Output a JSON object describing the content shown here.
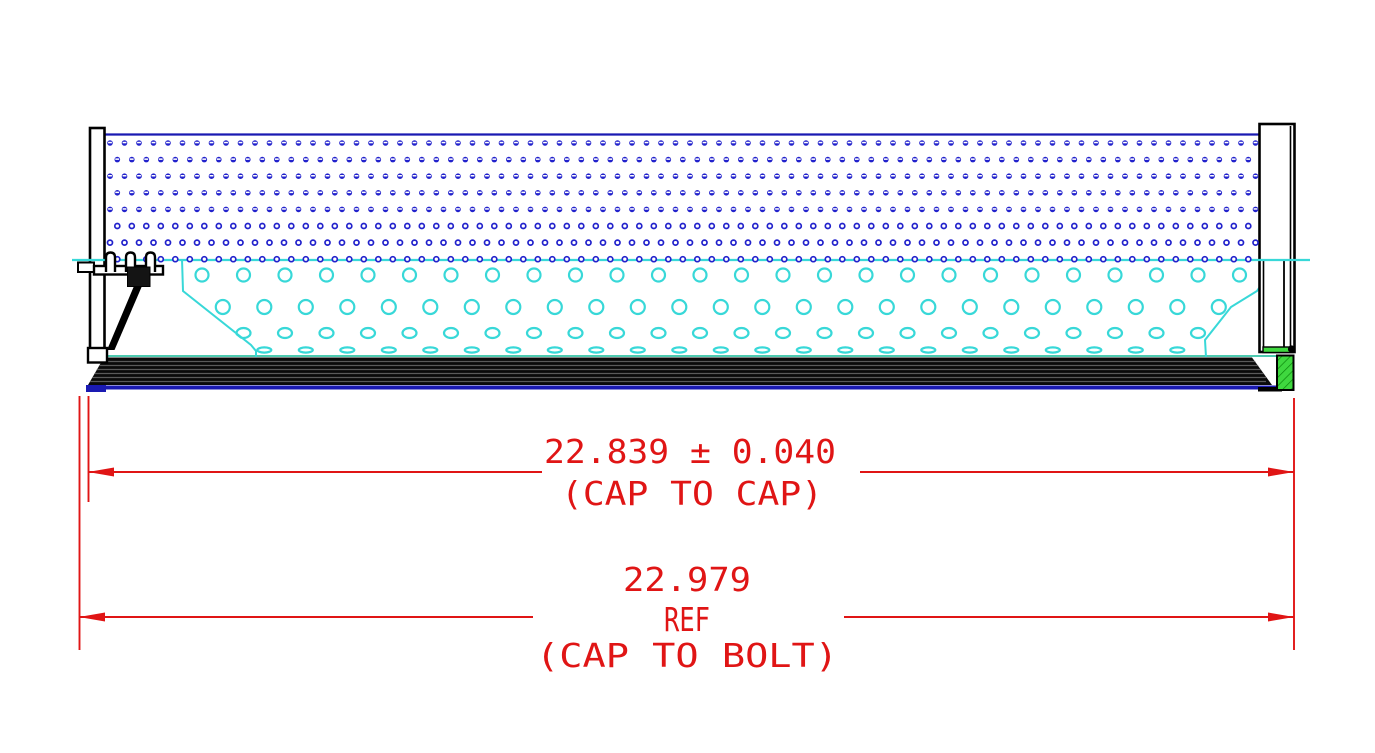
{
  "dimensions": {
    "cap_to_cap": {
      "value": "22.839 ± 0.040",
      "label": "(CAP TO CAP)"
    },
    "cap_to_bolt": {
      "value": "22.979",
      "ref": "REF",
      "label": "(CAP TO BOLT)"
    }
  },
  "colors": {
    "perforation_blue": "#2222cc",
    "edge_navy": "#1a1ab2",
    "element_cyan": "#38d8d8",
    "dimension_red": "#e01515",
    "gasket_green": "#3fd83f",
    "gasket_hatch": "#0c8a0c",
    "seal_band_black": "#0a0a0a",
    "band_stripe_gray": "#5a5a5a",
    "band_teal": "#12b896"
  }
}
